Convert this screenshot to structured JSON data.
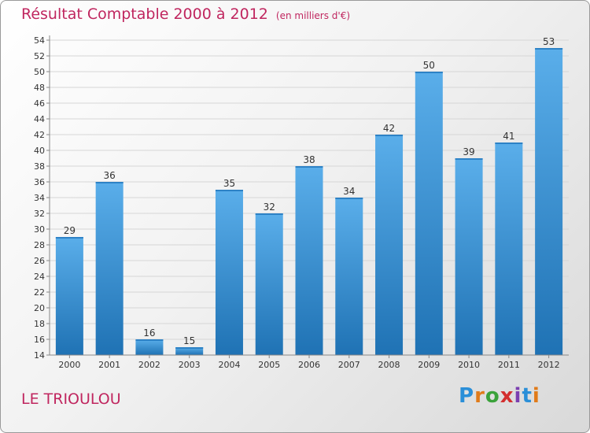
{
  "title": "Résultat Comptable 2000 à 2012",
  "unit_label": "(en milliers d'€)",
  "commune": "LE TRIOULOU",
  "logo": {
    "letters": [
      "P",
      "r",
      "o",
      "x",
      "i",
      "t",
      "i"
    ],
    "colors": [
      "#2a8fd8",
      "#e07b1a",
      "#3aa23a",
      "#d32f2f",
      "#7b3fb0",
      "#2a8fd8",
      "#e07b1a"
    ]
  },
  "colors": {
    "title": "#c0265f",
    "bar_top": "#5aaeea",
    "bar_bottom": "#1f72b4",
    "grid": "#d6d6d6",
    "axis": "#888888",
    "text": "#333333"
  },
  "chart_data": {
    "type": "bar",
    "categories": [
      "2000",
      "2001",
      "2002",
      "2003",
      "2004",
      "2005",
      "2006",
      "2007",
      "2008",
      "2009",
      "2010",
      "2011",
      "2012"
    ],
    "values": [
      29,
      36,
      16,
      15,
      35,
      32,
      38,
      34,
      42,
      50,
      39,
      41,
      53
    ],
    "ylim": [
      14,
      54
    ],
    "yticks": [
      14,
      16,
      18,
      20,
      22,
      24,
      26,
      28,
      30,
      32,
      34,
      36,
      38,
      40,
      42,
      44,
      46,
      48,
      50,
      52,
      54
    ],
    "grid": true,
    "data_labels": true,
    "xlabel": "",
    "ylabel": ""
  }
}
